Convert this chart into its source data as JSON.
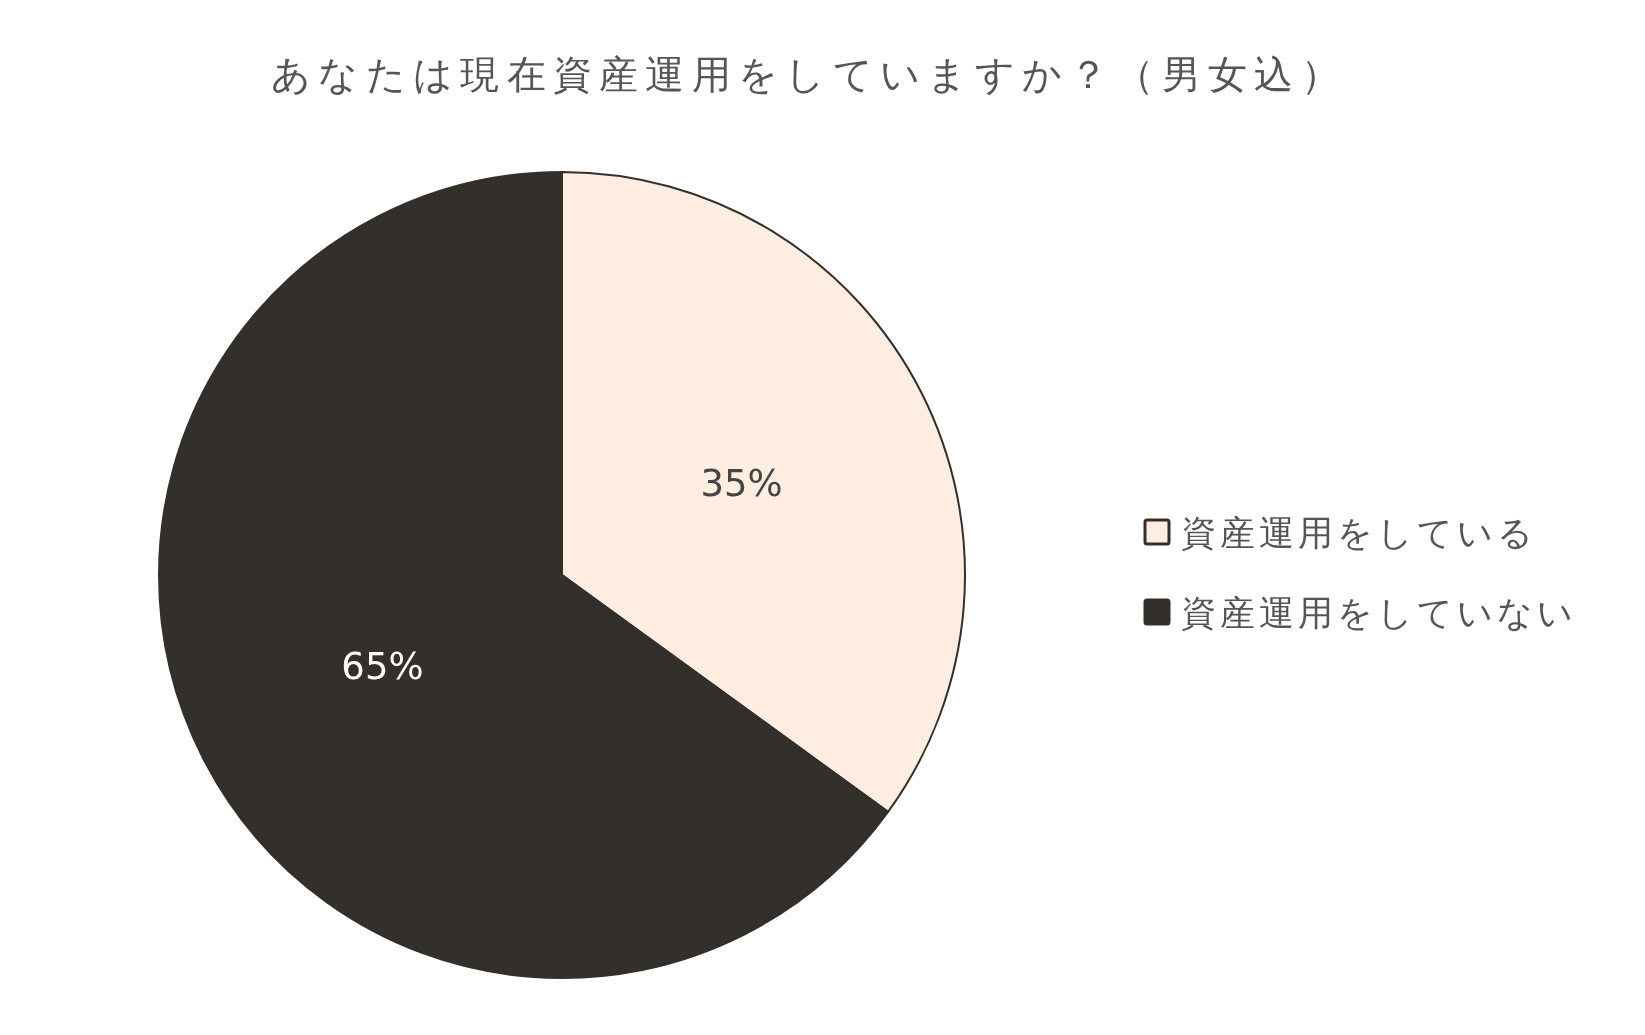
{
  "chart_data": {
    "type": "pie",
    "title": "あなたは現在資産運用をしていますか？（男女込）",
    "categories": [
      "資産運用をしている",
      "資産運用をしていない"
    ],
    "values": [
      35,
      65
    ],
    "colors": [
      "#feede0",
      "#332f2b"
    ],
    "value_labels": [
      "35%",
      "65%"
    ],
    "legend": "right"
  }
}
